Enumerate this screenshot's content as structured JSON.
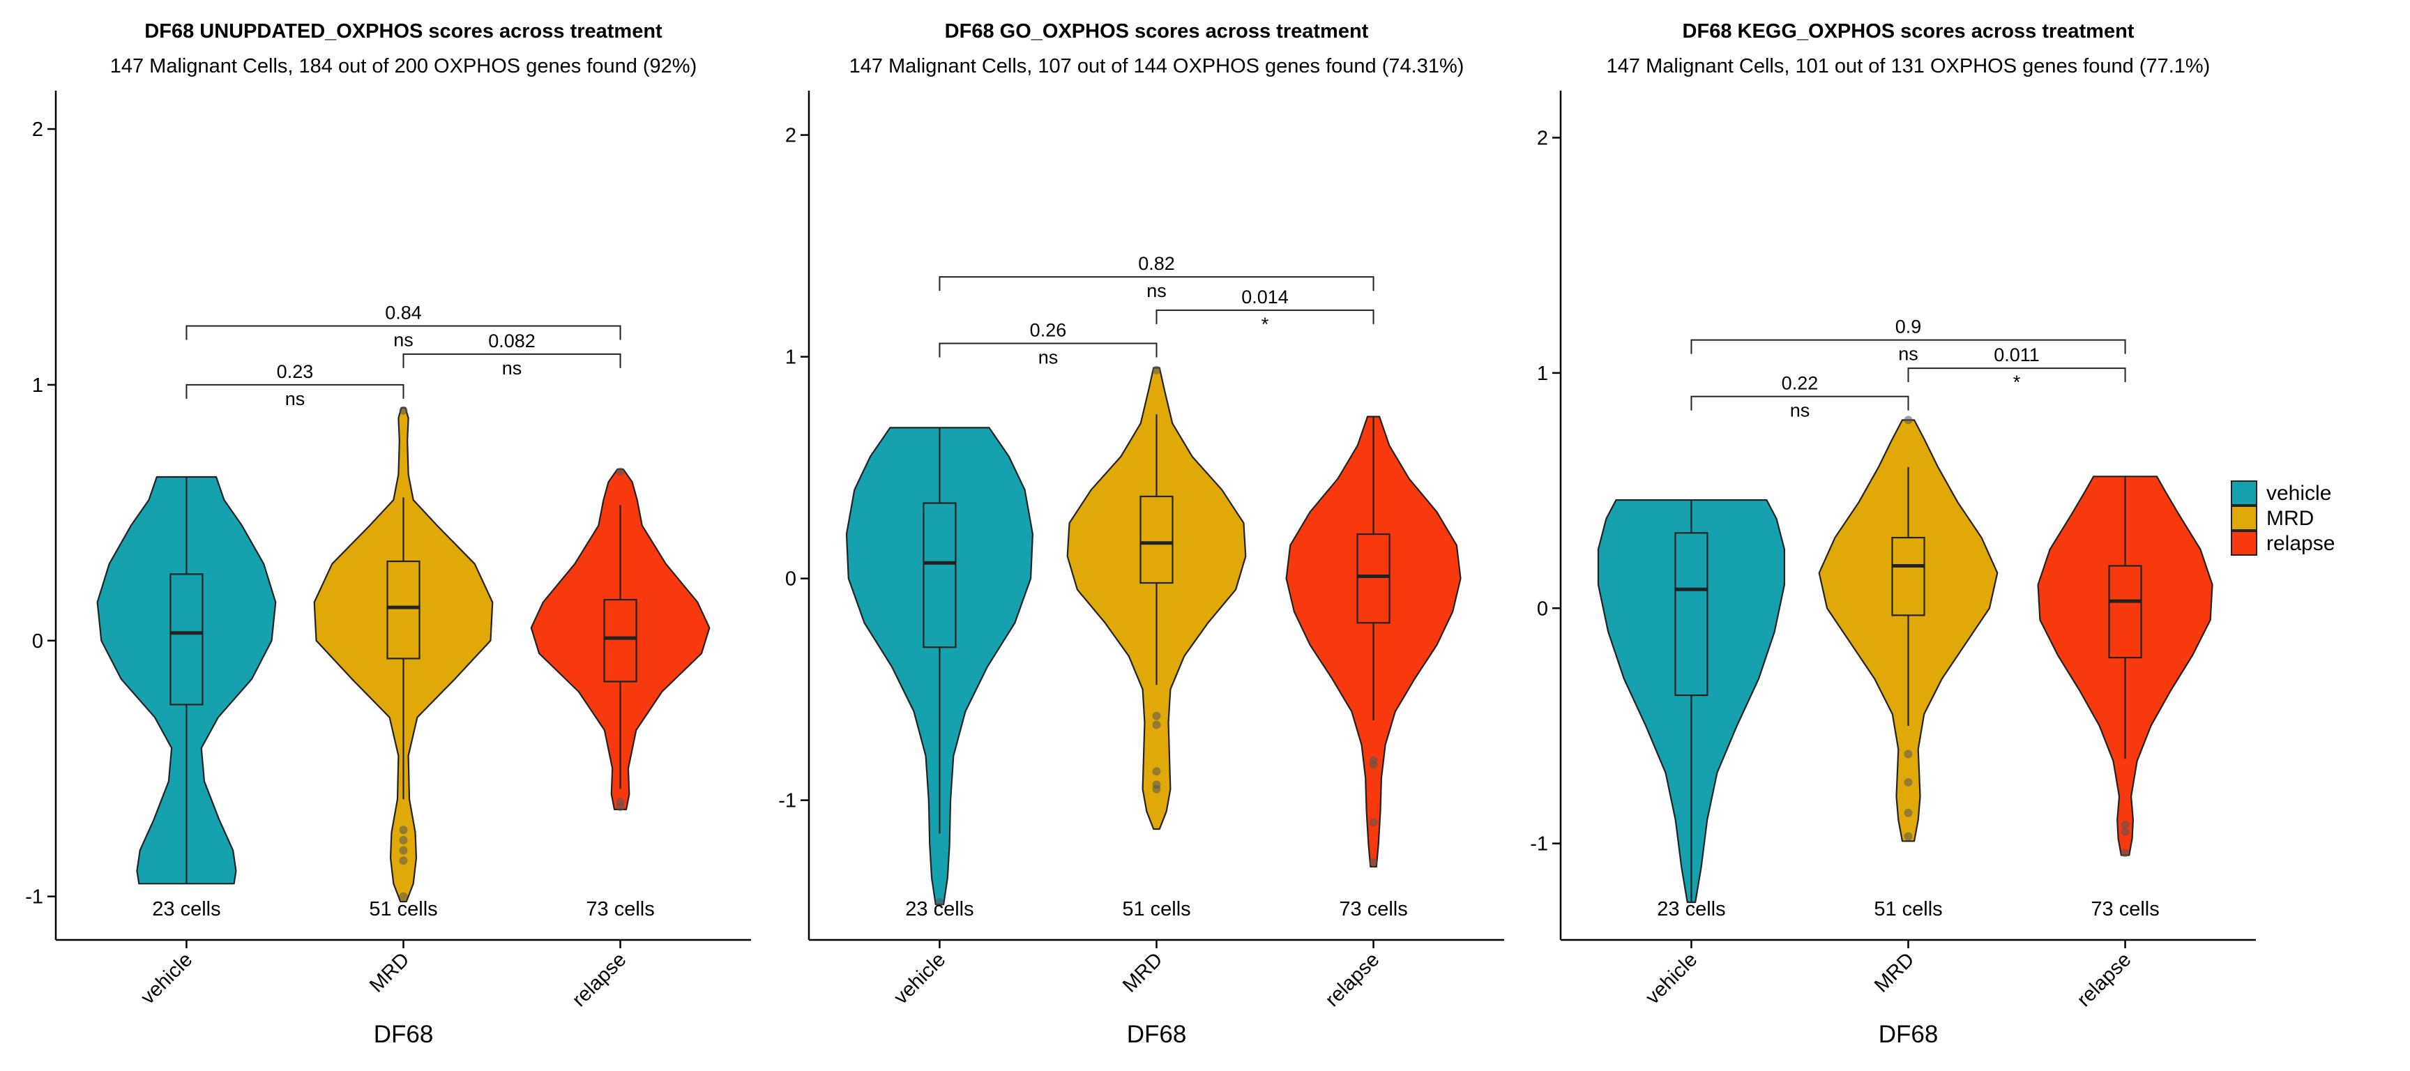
{
  "legend": [
    {
      "label": "vehicle",
      "color": "#16A1AF"
    },
    {
      "label": "MRD",
      "color": "#E1A908"
    },
    {
      "label": "relapse",
      "color": "#F8390E"
    }
  ],
  "chart_data": [
    {
      "type": "violin",
      "title": "DF68 UNUPDATED_OXPHOS scores across treatment",
      "subtitle": "147 Malignant Cells, 184 out of 200 OXPHOS genes found (92%)",
      "xlabel": "DF68",
      "ylabel": "",
      "ylim": [
        -1.17,
        2.15
      ],
      "yticks": [
        -1,
        0,
        1,
        2
      ],
      "categories": [
        "vehicle",
        "MRD",
        "relapse"
      ],
      "counts": [
        "23 cells",
        "51 cells",
        "73 cells"
      ],
      "groups": [
        {
          "name": "vehicle",
          "color": "#16A1AF",
          "ymin": -0.95,
          "ymax": 0.64,
          "q1": -0.25,
          "median": 0.03,
          "q3": 0.26,
          "whisker_low": -0.95,
          "whisker_high": 0.64,
          "outliers": [],
          "density": [
            [
              -0.95,
              0.48
            ],
            [
              -0.9,
              0.5
            ],
            [
              -0.82,
              0.47
            ],
            [
              -0.7,
              0.33
            ],
            [
              -0.55,
              0.18
            ],
            [
              -0.42,
              0.15
            ],
            [
              -0.3,
              0.32
            ],
            [
              -0.15,
              0.66
            ],
            [
              0.0,
              0.86
            ],
            [
              0.15,
              0.9
            ],
            [
              0.3,
              0.78
            ],
            [
              0.45,
              0.56
            ],
            [
              0.55,
              0.38
            ],
            [
              0.64,
              0.3
            ]
          ]
        },
        {
          "name": "MRD",
          "color": "#E1A908",
          "ymin": -1.02,
          "ymax": 0.91,
          "q1": -0.07,
          "median": 0.13,
          "q3": 0.31,
          "whisker_low": -0.62,
          "whisker_high": 0.56,
          "outliers": [
            -0.74,
            -0.78,
            -0.82,
            -0.86,
            -1.0,
            0.9
          ],
          "density": [
            [
              -1.02,
              0.03
            ],
            [
              -0.95,
              0.1
            ],
            [
              -0.85,
              0.13
            ],
            [
              -0.75,
              0.12
            ],
            [
              -0.62,
              0.06
            ],
            [
              -0.45,
              0.05
            ],
            [
              -0.3,
              0.14
            ],
            [
              -0.15,
              0.52
            ],
            [
              0.0,
              0.88
            ],
            [
              0.15,
              0.9
            ],
            [
              0.3,
              0.72
            ],
            [
              0.45,
              0.34
            ],
            [
              0.55,
              0.1
            ],
            [
              0.65,
              0.05
            ],
            [
              0.78,
              0.04
            ],
            [
              0.87,
              0.05
            ],
            [
              0.91,
              0.02
            ]
          ]
        },
        {
          "name": "relapse",
          "color": "#F8390E",
          "ymin": -0.66,
          "ymax": 0.67,
          "q1": -0.16,
          "median": 0.01,
          "q3": 0.16,
          "whisker_low": -0.58,
          "whisker_high": 0.53,
          "outliers": [
            -0.63,
            -0.65,
            0.66
          ],
          "density": [
            [
              -0.66,
              0.06
            ],
            [
              -0.6,
              0.09
            ],
            [
              -0.5,
              0.08
            ],
            [
              -0.35,
              0.16
            ],
            [
              -0.2,
              0.42
            ],
            [
              -0.05,
              0.82
            ],
            [
              0.05,
              0.9
            ],
            [
              0.15,
              0.78
            ],
            [
              0.3,
              0.46
            ],
            [
              0.45,
              0.22
            ],
            [
              0.55,
              0.17
            ],
            [
              0.62,
              0.12
            ],
            [
              0.67,
              0.03
            ]
          ]
        }
      ],
      "comparisons": [
        {
          "from": "vehicle",
          "to": "MRD",
          "p": "0.23",
          "sig": "ns",
          "y": 1.0
        },
        {
          "from": "MRD",
          "to": "relapse",
          "p": "0.082",
          "sig": "ns",
          "y": 1.12
        },
        {
          "from": "vehicle",
          "to": "relapse",
          "p": "0.84",
          "sig": "ns",
          "y": 1.23
        }
      ]
    },
    {
      "type": "violin",
      "title": "DF68 GO_OXPHOS scores across treatment",
      "subtitle": "147 Malignant Cells, 107 out of 144 OXPHOS genes found (74.31%)",
      "xlabel": "DF68",
      "ylabel": "",
      "ylim": [
        -1.63,
        2.2
      ],
      "yticks": [
        -1,
        0,
        1,
        2
      ],
      "categories": [
        "vehicle",
        "MRD",
        "relapse"
      ],
      "counts": [
        "23 cells",
        "51 cells",
        "73 cells"
      ],
      "groups": [
        {
          "name": "vehicle",
          "color": "#16A1AF",
          "ymin": -1.47,
          "ymax": 0.68,
          "q1": -0.31,
          "median": 0.07,
          "q3": 0.34,
          "whisker_low": -1.15,
          "whisker_high": 0.68,
          "outliers": [
            -1.46
          ],
          "density": [
            [
              -1.47,
              0.04
            ],
            [
              -1.35,
              0.08
            ],
            [
              -1.2,
              0.1
            ],
            [
              -1.0,
              0.11
            ],
            [
              -0.8,
              0.14
            ],
            [
              -0.6,
              0.26
            ],
            [
              -0.4,
              0.48
            ],
            [
              -0.2,
              0.76
            ],
            [
              0.0,
              0.92
            ],
            [
              0.2,
              0.94
            ],
            [
              0.4,
              0.86
            ],
            [
              0.55,
              0.7
            ],
            [
              0.68,
              0.5
            ]
          ]
        },
        {
          "name": "MRD",
          "color": "#E1A908",
          "ymin": -1.13,
          "ymax": 0.95,
          "q1": -0.02,
          "median": 0.16,
          "q3": 0.37,
          "whisker_low": -0.48,
          "whisker_high": 0.74,
          "outliers": [
            -0.62,
            -0.66,
            -0.87,
            -0.93,
            -0.95,
            0.94
          ],
          "density": [
            [
              -1.13,
              0.03
            ],
            [
              -1.05,
              0.1
            ],
            [
              -0.95,
              0.14
            ],
            [
              -0.8,
              0.13
            ],
            [
              -0.65,
              0.12
            ],
            [
              -0.5,
              0.14
            ],
            [
              -0.35,
              0.28
            ],
            [
              -0.2,
              0.52
            ],
            [
              -0.05,
              0.8
            ],
            [
              0.1,
              0.9
            ],
            [
              0.25,
              0.88
            ],
            [
              0.4,
              0.66
            ],
            [
              0.55,
              0.36
            ],
            [
              0.7,
              0.16
            ],
            [
              0.85,
              0.08
            ],
            [
              0.95,
              0.03
            ]
          ]
        },
        {
          "name": "relapse",
          "color": "#F8390E",
          "ymin": -1.3,
          "ymax": 0.73,
          "q1": -0.2,
          "median": 0.01,
          "q3": 0.2,
          "whisker_low": -0.64,
          "whisker_high": 0.73,
          "outliers": [
            -0.82,
            -0.84,
            -1.1,
            -1.28
          ],
          "density": [
            [
              -1.3,
              0.03
            ],
            [
              -1.2,
              0.05
            ],
            [
              -1.05,
              0.07
            ],
            [
              -0.9,
              0.08
            ],
            [
              -0.75,
              0.12
            ],
            [
              -0.6,
              0.22
            ],
            [
              -0.45,
              0.42
            ],
            [
              -0.3,
              0.64
            ],
            [
              -0.15,
              0.8
            ],
            [
              0.0,
              0.88
            ],
            [
              0.15,
              0.84
            ],
            [
              0.3,
              0.64
            ],
            [
              0.45,
              0.36
            ],
            [
              0.6,
              0.16
            ],
            [
              0.73,
              0.06
            ]
          ]
        }
      ],
      "comparisons": [
        {
          "from": "vehicle",
          "to": "MRD",
          "p": "0.26",
          "sig": "ns",
          "y": 1.06
        },
        {
          "from": "MRD",
          "to": "relapse",
          "p": "0.014",
          "sig": "*",
          "y": 1.21
        },
        {
          "from": "vehicle",
          "to": "relapse",
          "p": "0.82",
          "sig": "ns",
          "y": 1.36
        }
      ]
    },
    {
      "type": "violin",
      "title": "DF68 KEGG_OXPHOS scores across treatment",
      "subtitle": "147 Malignant Cells, 101 out of 131 OXPHOS genes found (77.1%)",
      "xlabel": "DF68",
      "ylabel": "",
      "ylim": [
        -1.41,
        2.2
      ],
      "yticks": [
        -1,
        0,
        1,
        2
      ],
      "categories": [
        "vehicle",
        "MRD",
        "relapse"
      ],
      "counts": [
        "23 cells",
        "51 cells",
        "73 cells"
      ],
      "groups": [
        {
          "name": "vehicle",
          "color": "#16A1AF",
          "ymin": -1.25,
          "ymax": 0.46,
          "q1": -0.37,
          "median": 0.08,
          "q3": 0.32,
          "whisker_low": -1.25,
          "whisker_high": 0.46,
          "outliers": [],
          "density": [
            [
              -1.25,
              0.04
            ],
            [
              -1.1,
              0.1
            ],
            [
              -0.9,
              0.16
            ],
            [
              -0.7,
              0.26
            ],
            [
              -0.5,
              0.46
            ],
            [
              -0.3,
              0.68
            ],
            [
              -0.1,
              0.84
            ],
            [
              0.1,
              0.94
            ],
            [
              0.25,
              0.94
            ],
            [
              0.38,
              0.86
            ],
            [
              0.46,
              0.76
            ]
          ]
        },
        {
          "name": "MRD",
          "color": "#E1A908",
          "ymin": -0.99,
          "ymax": 0.8,
          "q1": -0.03,
          "median": 0.18,
          "q3": 0.3,
          "whisker_low": -0.5,
          "whisker_high": 0.6,
          "outliers": [
            -0.62,
            -0.74,
            -0.87,
            -0.97,
            0.8
          ],
          "density": [
            [
              -0.99,
              0.06
            ],
            [
              -0.9,
              0.1
            ],
            [
              -0.8,
              0.12
            ],
            [
              -0.7,
              0.11
            ],
            [
              -0.6,
              0.1
            ],
            [
              -0.45,
              0.16
            ],
            [
              -0.3,
              0.34
            ],
            [
              -0.15,
              0.58
            ],
            [
              0.0,
              0.82
            ],
            [
              0.15,
              0.9
            ],
            [
              0.3,
              0.74
            ],
            [
              0.45,
              0.5
            ],
            [
              0.6,
              0.3
            ],
            [
              0.72,
              0.16
            ],
            [
              0.8,
              0.06
            ]
          ]
        },
        {
          "name": "relapse",
          "color": "#F8390E",
          "ymin": -1.05,
          "ymax": 0.56,
          "q1": -0.21,
          "median": 0.03,
          "q3": 0.18,
          "whisker_low": -0.64,
          "whisker_high": 0.56,
          "outliers": [
            -0.92,
            -0.95,
            -1.04
          ],
          "density": [
            [
              -1.05,
              0.04
            ],
            [
              -0.98,
              0.07
            ],
            [
              -0.9,
              0.08
            ],
            [
              -0.8,
              0.06
            ],
            [
              -0.65,
              0.12
            ],
            [
              -0.5,
              0.26
            ],
            [
              -0.35,
              0.46
            ],
            [
              -0.2,
              0.68
            ],
            [
              -0.05,
              0.86
            ],
            [
              0.1,
              0.88
            ],
            [
              0.25,
              0.76
            ],
            [
              0.4,
              0.54
            ],
            [
              0.5,
              0.4
            ],
            [
              0.56,
              0.32
            ]
          ]
        }
      ],
      "comparisons": [
        {
          "from": "vehicle",
          "to": "MRD",
          "p": "0.22",
          "sig": "ns",
          "y": 0.9
        },
        {
          "from": "MRD",
          "to": "relapse",
          "p": "0.011",
          "sig": "*",
          "y": 1.02
        },
        {
          "from": "vehicle",
          "to": "relapse",
          "p": "0.9",
          "sig": "ns",
          "y": 1.14
        }
      ]
    }
  ]
}
